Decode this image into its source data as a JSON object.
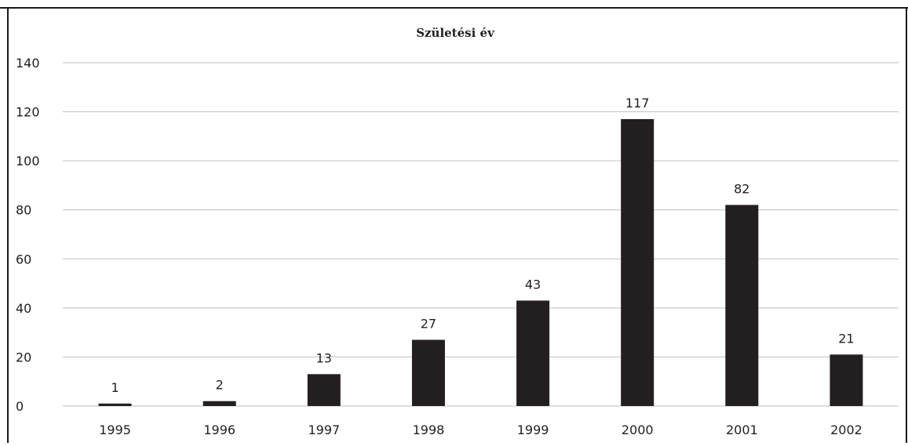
{
  "chart_data": {
    "type": "bar",
    "title": "Születési év",
    "categories": [
      "1995",
      "1996",
      "1997",
      "1998",
      "1999",
      "2000",
      "2001",
      "2002"
    ],
    "values": [
      1,
      2,
      13,
      27,
      43,
      117,
      82,
      21
    ],
    "data_labels": [
      "1",
      "2",
      "13",
      "27",
      "43",
      "117",
      "82",
      "21"
    ],
    "y_ticks": [
      "0",
      "20",
      "40",
      "60",
      "80",
      "100",
      "120",
      "140"
    ],
    "ylim": [
      0,
      140
    ],
    "grid": true,
    "legend": "none",
    "xlabel": "",
    "ylabel": "",
    "bar_color": "#231f20",
    "grid_color": "#bfbfbf"
  }
}
